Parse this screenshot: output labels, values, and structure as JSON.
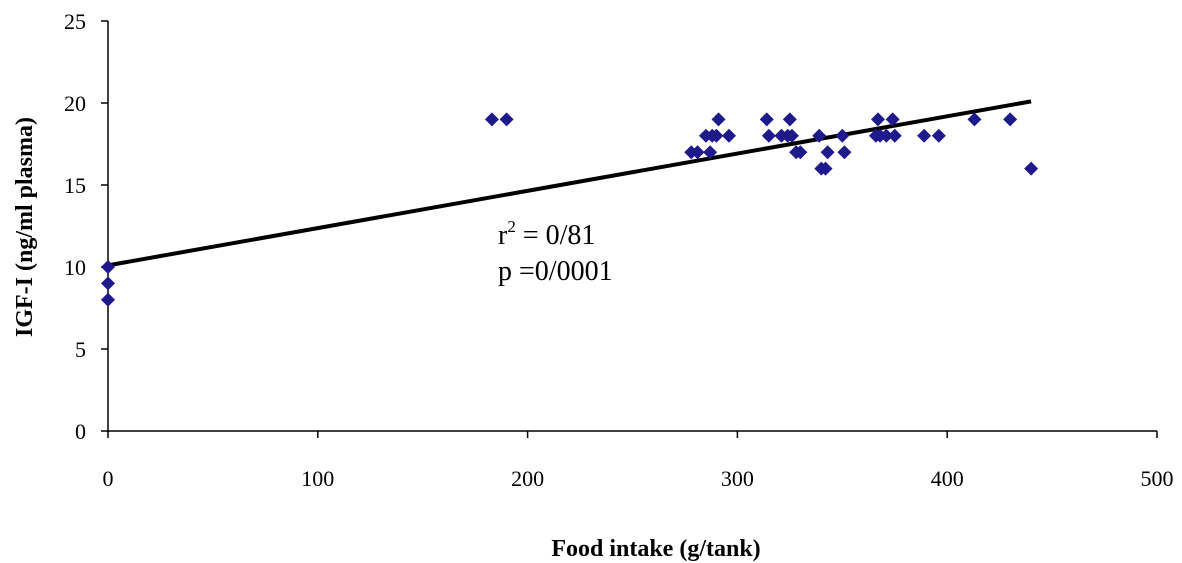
{
  "chart_data": {
    "type": "scatter",
    "xlabel": "Food intake (g/tank)",
    "ylabel": "IGF-I (ng/ml plasma)",
    "xlim": [
      0,
      500
    ],
    "ylim": [
      0,
      25
    ],
    "x_ticks": [
      0,
      100,
      200,
      300,
      400,
      500
    ],
    "y_ticks": [
      0,
      5,
      10,
      15,
      20,
      25
    ],
    "x_tick_labels": [
      "0",
      "100",
      "200",
      "300",
      "400",
      "500"
    ],
    "y_tick_labels": [
      "0",
      "5",
      "10",
      "15",
      "20",
      "25"
    ],
    "grid": false,
    "legend": "none",
    "marker": "diamond",
    "colors": {
      "points": "#1f1a8c",
      "trendline": "#000000",
      "axes": "#000000"
    },
    "series": [
      {
        "x": [
          0,
          0,
          0,
          183,
          190,
          278,
          281,
          285,
          287,
          288,
          290,
          291,
          296,
          314,
          315,
          321,
          324,
          325,
          326,
          328,
          330,
          339,
          340,
          342,
          343,
          350,
          351,
          366,
          367,
          368,
          371,
          374,
          375,
          389,
          396,
          413,
          430,
          440
        ],
        "y": [
          8,
          9,
          10,
          19,
          19,
          17,
          17,
          18,
          17,
          18,
          18,
          19,
          18,
          19,
          18,
          18,
          18,
          19,
          18,
          17,
          17,
          18,
          16,
          16,
          17,
          18,
          17,
          18,
          19,
          18,
          18,
          19,
          18,
          18,
          18,
          19,
          19,
          16
        ]
      }
    ],
    "trendline": {
      "x": [
        0,
        440
      ],
      "y": [
        10.1,
        20.1
      ]
    },
    "annotation": {
      "r_prefix": "r",
      "r_sup": "2",
      "r_value": " = 0/81",
      "p_line": "p =0/0001"
    }
  }
}
